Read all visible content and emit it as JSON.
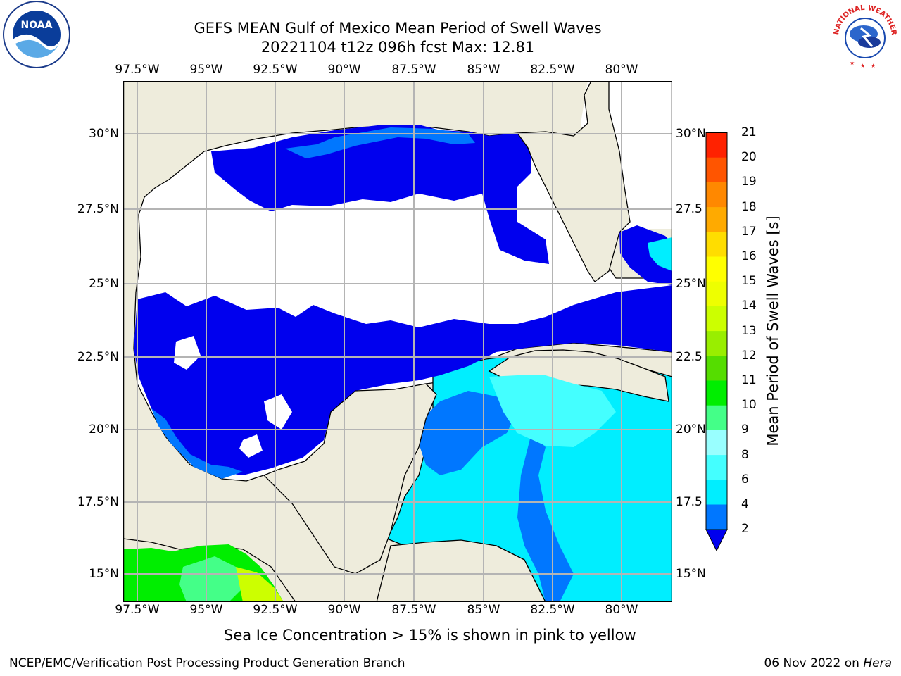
{
  "title": {
    "line1": "GEFS MEAN Gulf of Mexico Mean Period of Swell Waves",
    "line2": "20221104 t12z 096h fcst   Max: 12.81"
  },
  "map": {
    "lon_labels": [
      "97.5°W",
      "95°W",
      "92.5°W",
      "90°W",
      "87.5°W",
      "85°W",
      "82.5°W",
      "80°W"
    ],
    "lat_labels_left": [
      "30°N",
      "27.5°N",
      "25°N",
      "22.5°N",
      "20°N",
      "17.5°N",
      "15°N"
    ],
    "lat_labels_right": [
      "30°N",
      "27.5",
      "25°N",
      "22.5",
      "20°N",
      "17.5",
      "15°N"
    ],
    "colors": {
      "land": "#eeecdc",
      "water_nodata": "#ffffff",
      "gridline": "#b4b4b4"
    }
  },
  "colorbar": {
    "label": "Mean Period of Swell Waves [s]",
    "ticks": [
      "2",
      "4",
      "6",
      "8",
      "9",
      "10",
      "11",
      "12",
      "13",
      "14",
      "15",
      "16",
      "17",
      "18",
      "19",
      "20",
      "21"
    ],
    "colors": [
      "#0077ff",
      "#00eeff",
      "#44ffff",
      "#99ffff",
      "#44ff88",
      "#00ee00",
      "#55dd00",
      "#99ee00",
      "#ccff00",
      "#eeff00",
      "#ffff00",
      "#ffdd00",
      "#ffaa00",
      "#ff8800",
      "#ff5500",
      "#ff2200",
      "#ee0000"
    ],
    "under_color": "#0000ee"
  },
  "note": "Sea Ice Concentration > 15% is shown in pink to yellow",
  "footer": {
    "left": "NCEP/EMC/Verification Post Processing Product Generation Branch",
    "right_date": "06 Nov 2022 on",
    "right_host": "Hera"
  },
  "logos": {
    "left": "NOAA",
    "right": "NATIONAL WEATHER SERVICE"
  }
}
